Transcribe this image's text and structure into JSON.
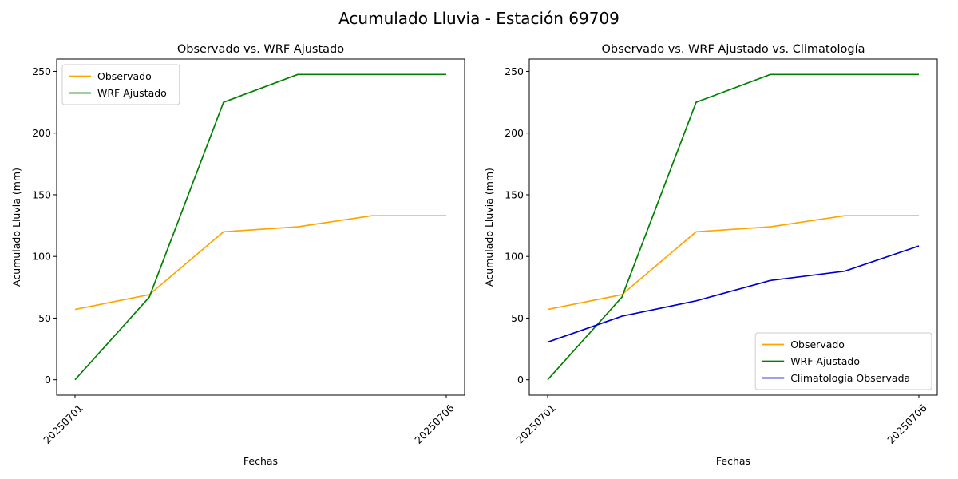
{
  "title": "Acumulado Lluvia - Estación 69709",
  "chart_data": [
    {
      "type": "line",
      "title": "Observado vs. WRF Ajustado",
      "xlabel": "Fechas",
      "ylabel": "Acumulado Lluvia (mm)",
      "x": [
        "20250701",
        "20250702",
        "20250703",
        "20250704",
        "20250705",
        "20250706"
      ],
      "x_tick_labels": [
        "20250701",
        "20250706"
      ],
      "y_ticks": [
        0,
        50,
        100,
        150,
        200,
        250
      ],
      "ylim": [
        -12.5,
        260
      ],
      "legend_position": "upper-left",
      "series": [
        {
          "name": "Observado",
          "color": "#ffa500",
          "values": [
            57,
            69,
            120,
            124,
            133,
            133
          ]
        },
        {
          "name": "WRF Ajustado",
          "color": "#008000",
          "values": [
            0,
            67,
            225,
            247.5,
            247.5,
            247.5
          ]
        }
      ]
    },
    {
      "type": "line",
      "title": "Observado vs. WRF Ajustado vs. Climatología",
      "xlabel": "Fechas",
      "ylabel": "Acumulado Lluvia (mm)",
      "x": [
        "20250701",
        "20250702",
        "20250703",
        "20250704",
        "20250705",
        "20250706"
      ],
      "x_tick_labels": [
        "20250701",
        "20250706"
      ],
      "y_ticks": [
        0,
        50,
        100,
        150,
        200,
        250
      ],
      "ylim": [
        -12.5,
        260
      ],
      "legend_position": "lower-right",
      "series": [
        {
          "name": "Observado",
          "color": "#ffa500",
          "values": [
            57,
            69,
            120,
            124,
            133,
            133
          ]
        },
        {
          "name": "WRF Ajustado",
          "color": "#008000",
          "values": [
            0,
            67,
            225,
            247.5,
            247.5,
            247.5
          ]
        },
        {
          "name": "Climatología Observada",
          "color": "#0000cd",
          "values": [
            30.5,
            51.5,
            64,
            80.5,
            88,
            108.5
          ]
        }
      ]
    }
  ]
}
